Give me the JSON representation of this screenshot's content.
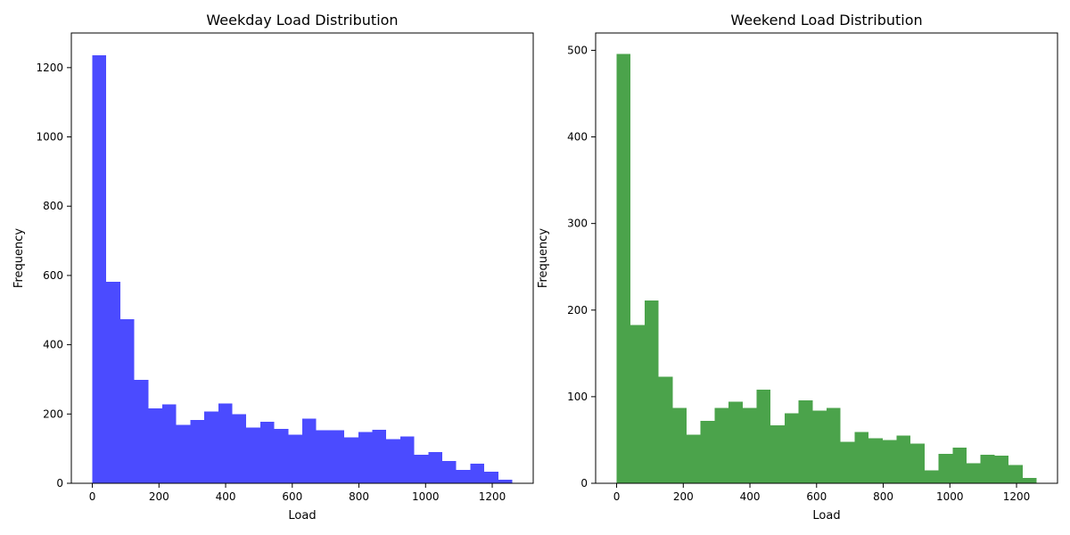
{
  "chart_data": [
    {
      "type": "bar",
      "title": "Weekday Load Distribution",
      "xlabel": "Load",
      "ylabel": "Frequency",
      "color": "#4b4bff",
      "xlim": [
        -63,
        1323
      ],
      "ylim": [
        0,
        1300
      ],
      "xticks": [
        0,
        200,
        400,
        600,
        800,
        1000,
        1200
      ],
      "yticks": [
        0,
        200,
        400,
        600,
        800,
        1000,
        1200
      ],
      "bin_width": 42,
      "bin_start": 0,
      "values": [
        1236,
        582,
        474,
        298,
        216,
        228,
        168,
        183,
        207,
        231,
        199,
        161,
        178,
        157,
        140,
        186,
        153,
        153,
        133,
        148,
        155,
        128,
        135,
        82,
        90,
        65,
        39,
        56,
        33,
        10
      ],
      "grid": false
    },
    {
      "type": "bar",
      "title": "Weekend Load Distribution",
      "xlabel": "Load",
      "ylabel": "Frequency",
      "color": "#4ba34b",
      "xlim": [
        -63,
        1323
      ],
      "ylim": [
        0,
        520
      ],
      "xticks": [
        0,
        200,
        400,
        600,
        800,
        1000,
        1200
      ],
      "yticks": [
        0,
        100,
        200,
        300,
        400,
        500
      ],
      "bin_width": 42,
      "bin_start": 0,
      "values": [
        496,
        183,
        211,
        123,
        87,
        56,
        72,
        87,
        94,
        87,
        108,
        67,
        81,
        96,
        84,
        87,
        48,
        59,
        52,
        50,
        55,
        46,
        15,
        34,
        41,
        23,
        33,
        32,
        21,
        6
      ],
      "grid": false
    }
  ]
}
